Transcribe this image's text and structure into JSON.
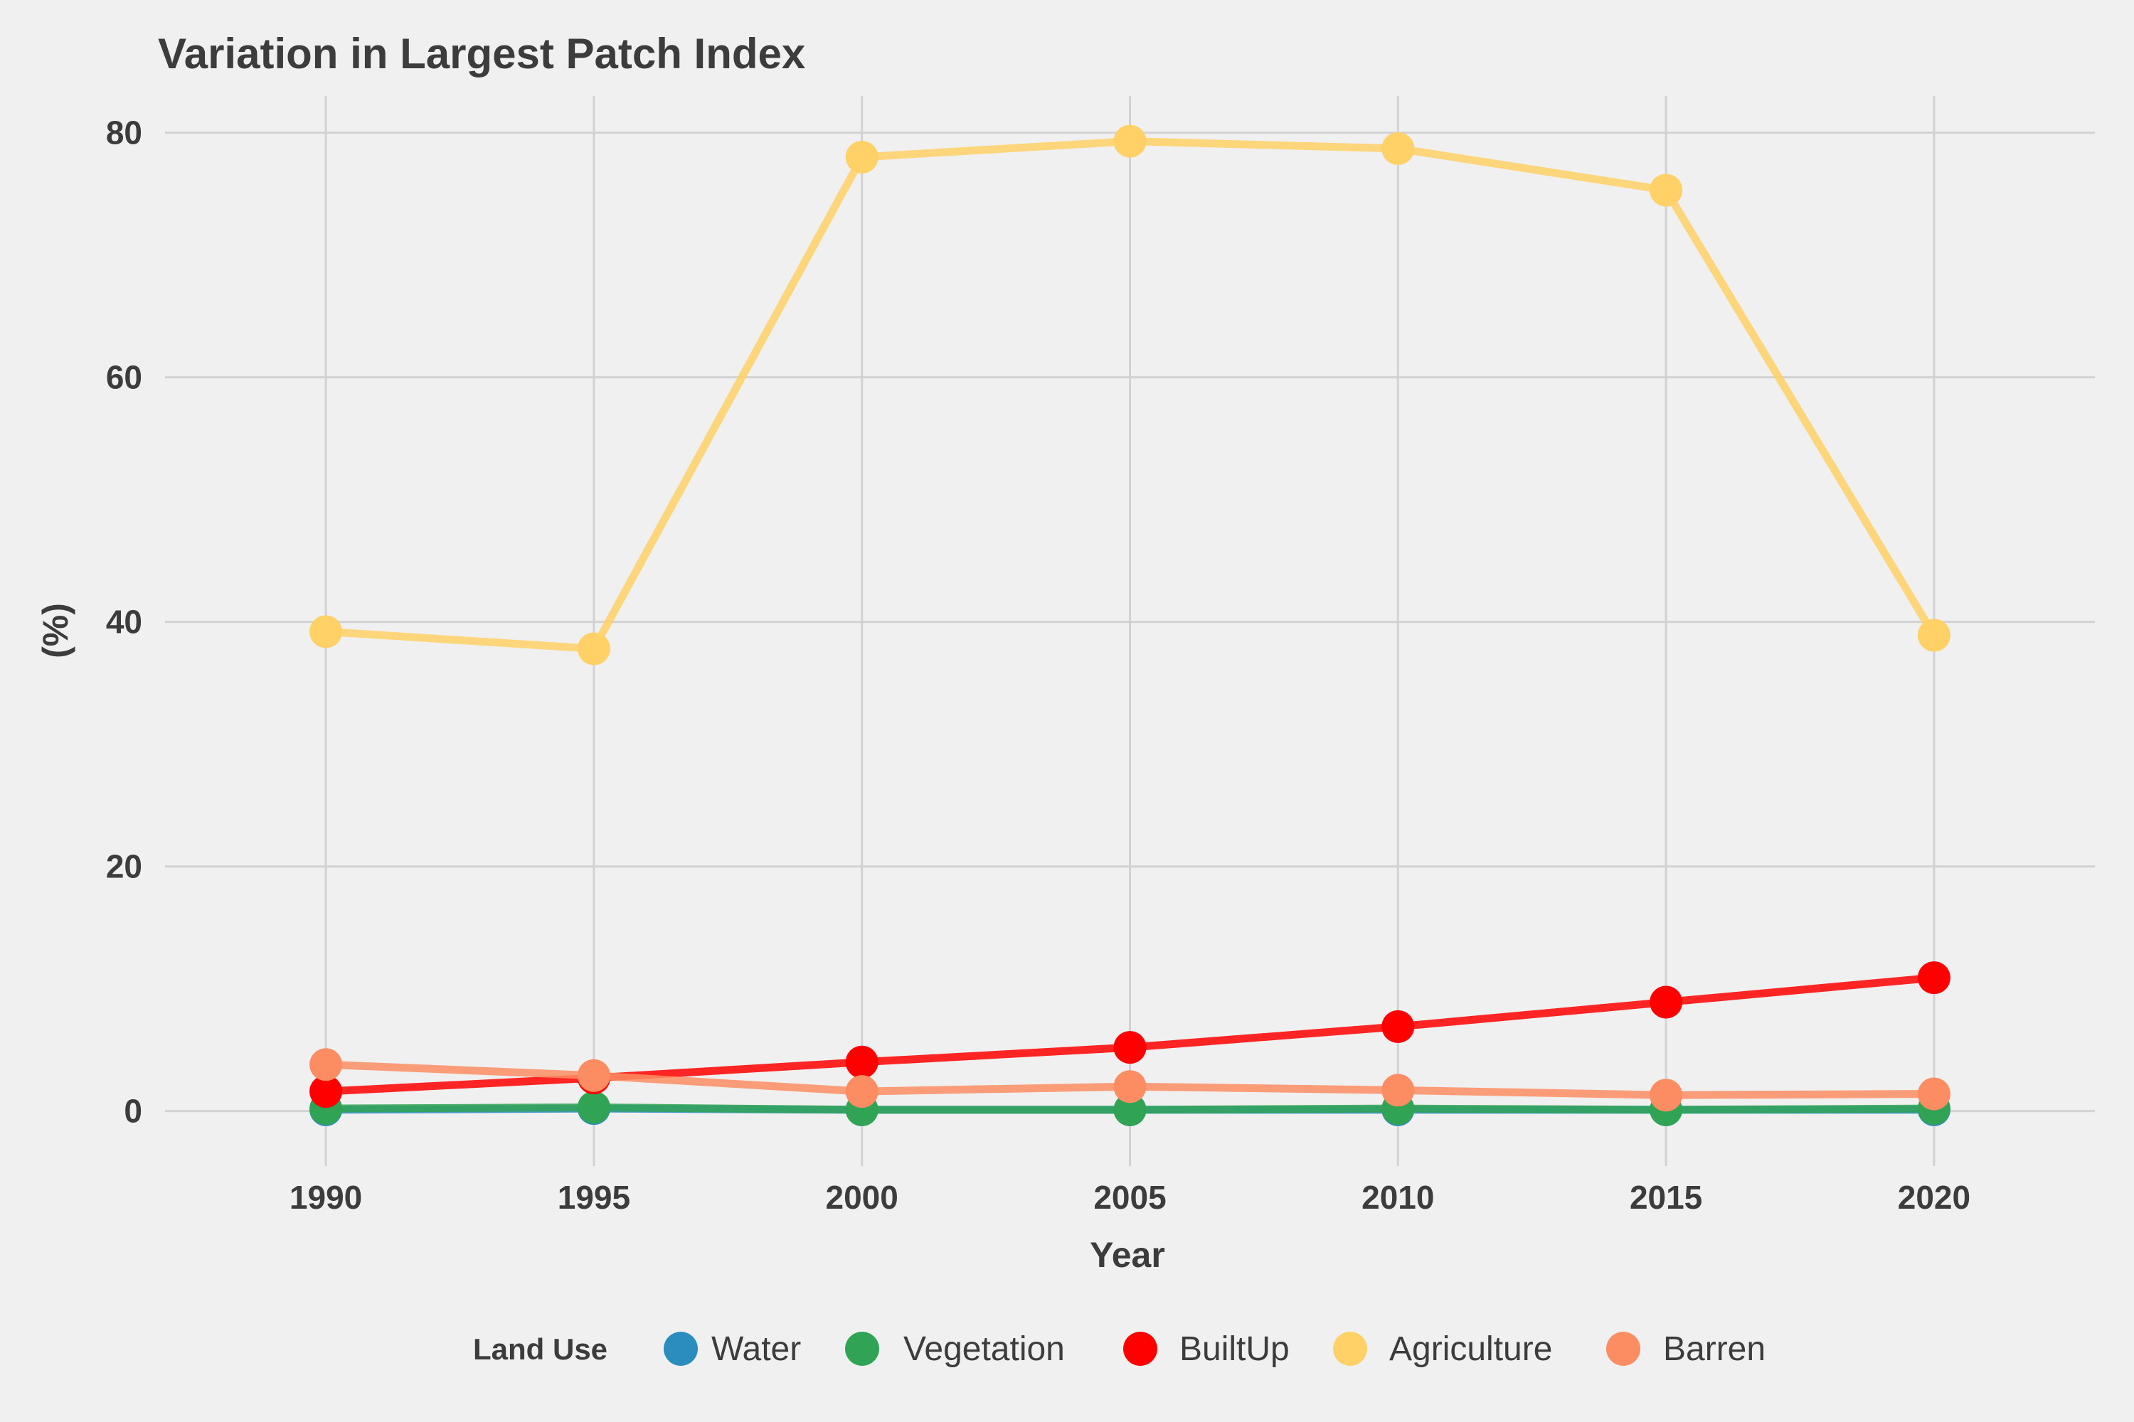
{
  "chart_data": {
    "type": "line",
    "title": "Variation in Largest Patch Index",
    "xlabel": "Year",
    "ylabel": "(%)",
    "x": [
      1990,
      1995,
      2000,
      2005,
      2010,
      2015,
      2020
    ],
    "xlim": [
      1987,
      2023
    ],
    "ylim": [
      -4.5,
      83
    ],
    "y_ticks": [
      0,
      20,
      40,
      60,
      80
    ],
    "grid": true,
    "legend": {
      "title": "Land Use",
      "placement": "bottom"
    },
    "series": [
      {
        "name": "Water",
        "color": "#2b8cbe",
        "values": [
          0.1,
          0.2,
          0.1,
          0.1,
          0.1,
          0.1,
          0.1
        ]
      },
      {
        "name": "Vegetation",
        "color": "#31a354",
        "values": [
          0.2,
          0.3,
          0.1,
          0.1,
          0.2,
          0.1,
          0.2
        ]
      },
      {
        "name": "BuiltUp",
        "color": "#ff0000",
        "values": [
          1.6,
          2.7,
          4.0,
          5.2,
          6.9,
          8.9,
          10.9
        ]
      },
      {
        "name": "Agriculture",
        "color": "#ffd166",
        "values": [
          39.2,
          37.8,
          78.0,
          79.3,
          78.7,
          75.3,
          38.9
        ]
      },
      {
        "name": "Barren",
        "color": "#fc8d62",
        "values": [
          3.8,
          2.9,
          1.6,
          2.0,
          1.7,
          1.3,
          1.4
        ]
      }
    ]
  }
}
